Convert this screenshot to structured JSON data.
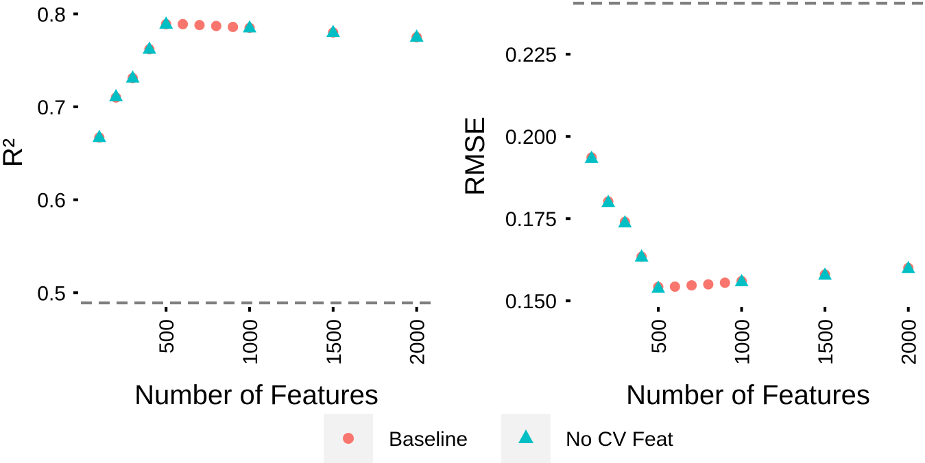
{
  "chart_data": [
    {
      "type": "scatter",
      "xlabel": "Number of Features",
      "ylabel": "R²",
      "ylim": [
        0.47,
        0.815
      ],
      "xlim": [
        -10,
        2100
      ],
      "x_ticks": [
        500,
        1000,
        1500,
        2000
      ],
      "y_ticks": [
        0.5,
        0.6,
        0.7,
        0.8
      ],
      "x_tick_labels": [
        "500",
        "1000",
        "1500",
        "2000"
      ],
      "y_tick_labels": [
        "0.5",
        "0.6",
        "0.7",
        "0.8"
      ],
      "grid": false,
      "reference_line": {
        "y": 0.489,
        "style": "dashed",
        "color": "#808080"
      },
      "series": [
        {
          "name": "Baseline",
          "marker": "circle",
          "color": "#F8766D",
          "x": [
            100,
            200,
            300,
            400,
            500,
            600,
            700,
            800,
            900,
            1000,
            1500,
            2000
          ],
          "y": [
            0.667,
            0.71,
            0.731,
            0.762,
            0.789,
            0.789,
            0.788,
            0.787,
            0.786,
            0.785,
            0.78,
            0.775
          ]
        },
        {
          "name": "No CV Feat",
          "marker": "triangle",
          "color": "#00BFC4",
          "x": [
            100,
            200,
            300,
            400,
            500,
            1000,
            1500,
            2000
          ],
          "y": [
            0.668,
            0.712,
            0.732,
            0.763,
            0.79,
            0.786,
            0.781,
            0.776
          ]
        }
      ]
    },
    {
      "type": "scatter",
      "xlabel": "Number of Features",
      "ylabel": "RMSE",
      "ylim": [
        0.144,
        0.2415
      ],
      "xlim": [
        -10,
        2100
      ],
      "x_ticks": [
        500,
        1000,
        1500,
        2000
      ],
      "y_ticks": [
        0.15,
        0.175,
        0.2,
        0.225
      ],
      "x_tick_labels": [
        "500",
        "1000",
        "1500",
        "2000"
      ],
      "y_tick_labels": [
        "0.150",
        "0.175",
        "0.200",
        "0.225"
      ],
      "grid": false,
      "reference_line": {
        "y": 0.2405,
        "style": "dashed",
        "color": "#808080"
      },
      "series": [
        {
          "name": "Baseline",
          "marker": "circle",
          "color": "#F8766D",
          "x": [
            100,
            200,
            300,
            400,
            500,
            600,
            700,
            800,
            900,
            1000,
            1500,
            2000
          ],
          "y": [
            0.1936,
            0.1802,
            0.174,
            0.1634,
            0.1542,
            0.1543,
            0.1547,
            0.155,
            0.1555,
            0.156,
            0.158,
            0.16
          ]
        },
        {
          "name": "No CV Feat",
          "marker": "triangle",
          "color": "#00BFC4",
          "x": [
            100,
            200,
            300,
            400,
            500,
            1000,
            1500,
            2000
          ],
          "y": [
            0.1936,
            0.1802,
            0.174,
            0.1636,
            0.1541,
            0.1561,
            0.1581,
            0.1601
          ]
        }
      ]
    }
  ],
  "legend": {
    "placement": "bottom",
    "items": [
      {
        "label": "Baseline",
        "marker": "circle",
        "color": "#F8766D"
      },
      {
        "label": "No CV Feat",
        "marker": "triangle",
        "color": "#00BFC4"
      }
    ],
    "key_background": "#F2F2F2"
  }
}
